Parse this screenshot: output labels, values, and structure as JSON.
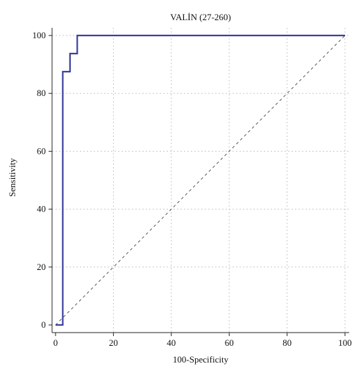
{
  "chart_data": {
    "type": "line",
    "title": "VALİN (27-260)",
    "xlabel": "100-Specificity",
    "ylabel": "Sensitivity",
    "xlim": [
      0,
      100
    ],
    "ylim": [
      0,
      100
    ],
    "x_ticks": [
      0,
      20,
      40,
      60,
      80,
      100
    ],
    "y_ticks": [
      0,
      20,
      40,
      60,
      80,
      100
    ],
    "grid": true,
    "series": [
      {
        "style": "solid",
        "color": "#3b3f9c",
        "x": [
          0,
          2.5,
          2.5,
          5,
          5,
          7.5,
          7.5,
          100
        ],
        "y": [
          0,
          0,
          87.5,
          87.5,
          93.75,
          93.75,
          100,
          100
        ]
      },
      {
        "style": "dashed",
        "color": "#555555",
        "x": [
          0,
          100
        ],
        "y": [
          0,
          100
        ]
      }
    ]
  }
}
